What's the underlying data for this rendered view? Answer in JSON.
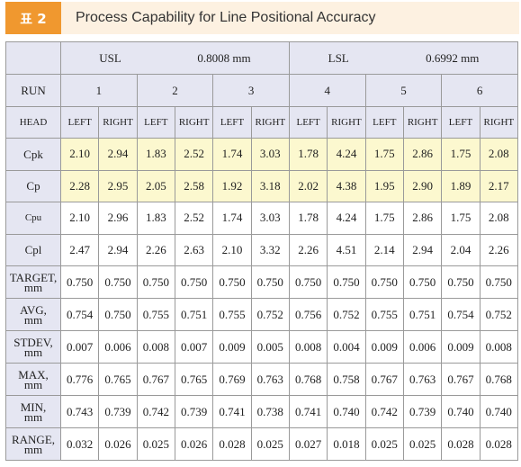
{
  "header": {
    "badge": "표 2",
    "title": "Process Capability for Line Positional Accuracy"
  },
  "table": {
    "spec": [
      {
        "label": "USL",
        "value": "0.8008 mm"
      },
      {
        "label": "LSL",
        "value": "0.6992 mm"
      }
    ],
    "run_label": "RUN",
    "runs": [
      "1",
      "2",
      "3",
      "4",
      "5",
      "6"
    ],
    "head_label": "HEAD",
    "heads": [
      "LEFT",
      "RIGHT",
      "LEFT",
      "RIGHT",
      "LEFT",
      "RIGHT",
      "LEFT",
      "RIGHT",
      "LEFT",
      "RIGHT",
      "LEFT",
      "RIGHT"
    ],
    "rows": [
      {
        "label": [
          "Cpk"
        ],
        "highlight": true,
        "values": [
          "2.10",
          "2.94",
          "1.83",
          "2.52",
          "1.74",
          "3.03",
          "1.78",
          "4.24",
          "1.75",
          "2.86",
          "1.75",
          "2.08"
        ]
      },
      {
        "label": [
          "Cp"
        ],
        "highlight": true,
        "values": [
          "2.28",
          "2.95",
          "2.05",
          "2.58",
          "1.92",
          "3.18",
          "2.02",
          "4.38",
          "1.95",
          "2.90",
          "1.89",
          "2.17"
        ]
      },
      {
        "label": [
          "Cpu"
        ],
        "highlight": false,
        "values": [
          "2.10",
          "2.96",
          "1.83",
          "2.52",
          "1.74",
          "3.03",
          "1.78",
          "4.24",
          "1.75",
          "2.86",
          "1.75",
          "2.08"
        ]
      },
      {
        "label": [
          "Cpl"
        ],
        "highlight": false,
        "values": [
          "2.47",
          "2.94",
          "2.26",
          "2.63",
          "2.10",
          "3.32",
          "2.26",
          "4.51",
          "2.14",
          "2.94",
          "2.04",
          "2.26"
        ]
      },
      {
        "label": [
          "TARGET,",
          "mm"
        ],
        "highlight": false,
        "values": [
          "0.750",
          "0.750",
          "0.750",
          "0.750",
          "0.750",
          "0.750",
          "0.750",
          "0.750",
          "0.750",
          "0.750",
          "0.750",
          "0.750"
        ]
      },
      {
        "label": [
          "AVG,",
          "mm"
        ],
        "highlight": false,
        "values": [
          "0.754",
          "0.750",
          "0.755",
          "0.751",
          "0.755",
          "0.752",
          "0.756",
          "0.752",
          "0.755",
          "0.751",
          "0.754",
          "0.752"
        ]
      },
      {
        "label": [
          "STDEV,",
          "mm"
        ],
        "highlight": false,
        "values": [
          "0.007",
          "0.006",
          "0.008",
          "0.007",
          "0.009",
          "0.005",
          "0.008",
          "0.004",
          "0.009",
          "0.006",
          "0.009",
          "0.008"
        ]
      },
      {
        "label": [
          "MAX,",
          "mm"
        ],
        "highlight": false,
        "values": [
          "0.776",
          "0.765",
          "0.767",
          "0.765",
          "0.769",
          "0.763",
          "0.768",
          "0.758",
          "0.767",
          "0.763",
          "0.767",
          "0.768"
        ]
      },
      {
        "label": [
          "MIN,",
          "mm"
        ],
        "highlight": false,
        "values": [
          "0.743",
          "0.739",
          "0.742",
          "0.739",
          "0.741",
          "0.738",
          "0.741",
          "0.740",
          "0.742",
          "0.739",
          "0.740",
          "0.740"
        ]
      },
      {
        "label": [
          "RANGE,",
          "mm"
        ],
        "highlight": false,
        "values": [
          "0.032",
          "0.026",
          "0.025",
          "0.026",
          "0.028",
          "0.025",
          "0.027",
          "0.018",
          "0.025",
          "0.025",
          "0.028",
          "0.028"
        ]
      }
    ]
  }
}
